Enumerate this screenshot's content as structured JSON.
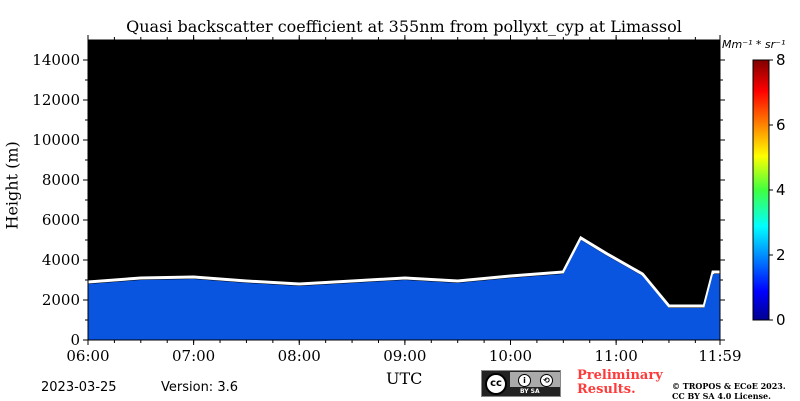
{
  "chart_data": {
    "type": "heatmap",
    "title": "Quasi backscatter coefficient at 355nm from pollyxt_cyp at Limassol",
    "xlabel": "UTC",
    "ylabel": "Height (m)",
    "x_range": [
      "06:00",
      "11:59"
    ],
    "x_ticks": [
      "06:00",
      "07:00",
      "08:00",
      "09:00",
      "10:00",
      "11:00",
      "11:59"
    ],
    "ylim": [
      0,
      15000
    ],
    "y_ticks": [
      "0",
      "2000",
      "4000",
      "6000",
      "8000",
      "10000",
      "12000",
      "14000"
    ],
    "colorbar": {
      "label": "Mm⁻¹ * sr⁻¹",
      "range": [
        0,
        8
      ],
      "ticks": [
        "0",
        "2",
        "4",
        "6",
        "8"
      ],
      "colormap": "jet"
    },
    "colors": {
      "background": "#000000",
      "aerosol_layer": "#0a55e0",
      "cloud": "#ffffff"
    },
    "boundary_layer_top_m": [
      {
        "time": "06:00",
        "height": 2800
      },
      {
        "time": "06:30",
        "height": 3000
      },
      {
        "time": "07:00",
        "height": 3050
      },
      {
        "time": "07:30",
        "height": 2850
      },
      {
        "time": "08:00",
        "height": 2700
      },
      {
        "time": "08:30",
        "height": 2850
      },
      {
        "time": "09:00",
        "height": 3000
      },
      {
        "time": "09:30",
        "height": 2850
      },
      {
        "time": "10:00",
        "height": 3100
      },
      {
        "time": "10:30",
        "height": 3300
      },
      {
        "time": "10:40",
        "height": 5000
      },
      {
        "time": "10:55",
        "height": 4200
      },
      {
        "time": "11:15",
        "height": 3200
      },
      {
        "time": "11:30",
        "height": 1600
      },
      {
        "time": "11:50",
        "height": 1600
      },
      {
        "time": "11:55",
        "height": 3300
      },
      {
        "time": "11:59",
        "height": 3300
      }
    ]
  },
  "footer": {
    "date": "2023-03-25",
    "version": "Version: 3.6",
    "license_badge": {
      "top": "cc",
      "bottom": "BY   SA"
    },
    "preliminary_line1": "Preliminary",
    "preliminary_line2": "Results.",
    "copyright_line1": "© TROPOS & ECoE 2023.",
    "copyright_line2": "CC BY SA 4.0 License."
  }
}
